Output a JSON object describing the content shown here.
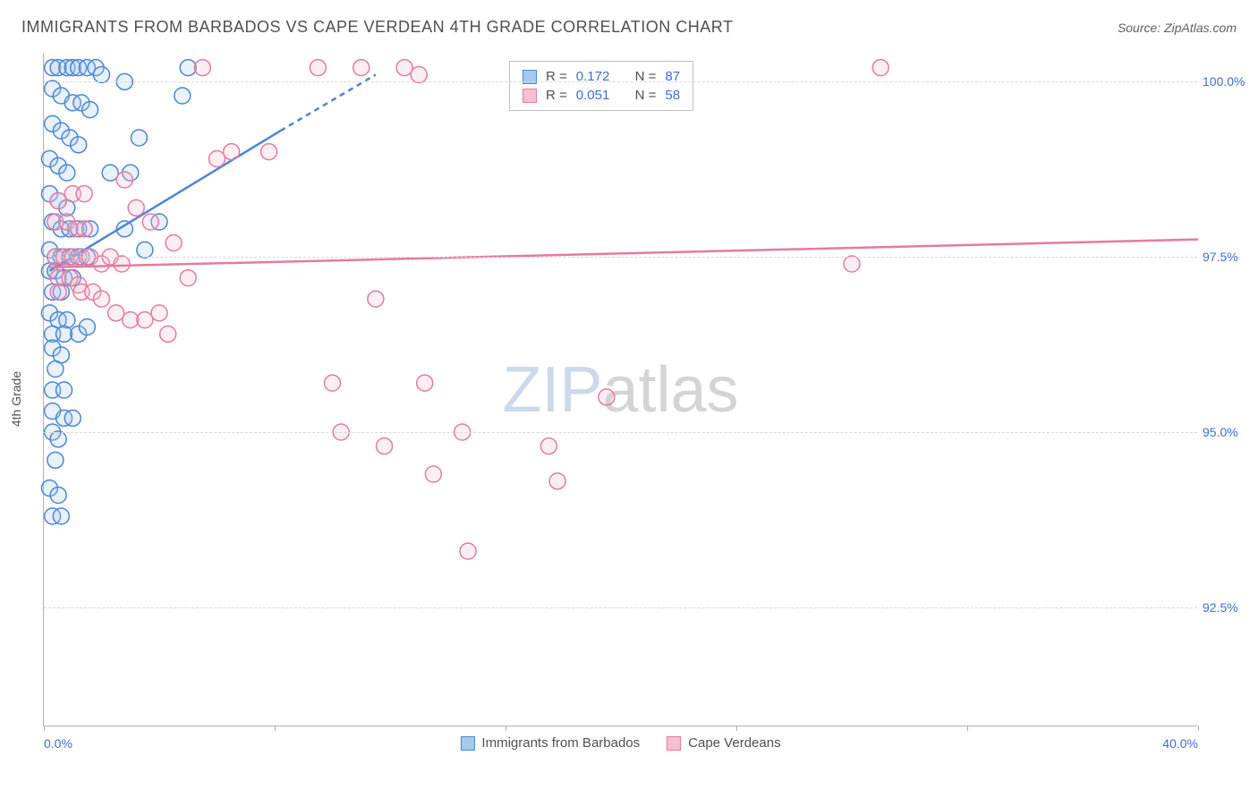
{
  "title": "IMMIGRANTS FROM BARBADOS VS CAPE VERDEAN 4TH GRADE CORRELATION CHART",
  "source": "Source: ZipAtlas.com",
  "watermark": {
    "bold": "ZIP",
    "rest": "atlas"
  },
  "y_axis_title": "4th Grade",
  "chart": {
    "type": "scatter",
    "xlim": [
      0,
      40
    ],
    "ylim": [
      90.8,
      100.4
    ],
    "background_color": "#ffffff",
    "grid_color": "#d8d8d8",
    "axis_color": "#b0b0b0",
    "tick_label_color": "#3b6fd6",
    "tick_fontsize": 14,
    "y_ticks": [
      92.5,
      95.0,
      97.5,
      100.0
    ],
    "y_tick_labels": [
      "92.5%",
      "95.0%",
      "97.5%",
      "100.0%"
    ],
    "x_ticks": [
      0,
      8,
      16,
      24,
      32,
      40
    ],
    "x_tick_labels_shown": {
      "0": "0.0%",
      "40": "40.0%"
    },
    "marker_radius": 9,
    "marker_fill_opacity": 0.25,
    "marker_stroke_width": 1.5,
    "trend_line_width": 2.5,
    "dashed_extension": true
  },
  "series": [
    {
      "key": "barbados",
      "label": "Immigrants from Barbados",
      "color_stroke": "#4a86d8",
      "color_fill": "#a8c8ec",
      "R": "0.172",
      "N": "87",
      "trend": {
        "x1": 0.2,
        "y1": 97.3,
        "x2": 8.2,
        "y2": 99.3,
        "dash_x2": 11.5,
        "dash_y2": 100.1
      },
      "points": [
        [
          0.3,
          100.2
        ],
        [
          0.5,
          100.2
        ],
        [
          0.8,
          100.2
        ],
        [
          1.0,
          100.2
        ],
        [
          1.2,
          100.2
        ],
        [
          1.5,
          100.2
        ],
        [
          1.8,
          100.2
        ],
        [
          2.0,
          100.1
        ],
        [
          0.3,
          99.9
        ],
        [
          0.6,
          99.8
        ],
        [
          1.0,
          99.7
        ],
        [
          1.3,
          99.7
        ],
        [
          1.6,
          99.6
        ],
        [
          0.3,
          99.4
        ],
        [
          0.6,
          99.3
        ],
        [
          0.9,
          99.2
        ],
        [
          1.2,
          99.1
        ],
        [
          0.2,
          98.9
        ],
        [
          0.5,
          98.8
        ],
        [
          0.8,
          98.7
        ],
        [
          0.2,
          98.4
        ],
        [
          0.5,
          98.3
        ],
        [
          0.8,
          98.2
        ],
        [
          0.3,
          98.0
        ],
        [
          0.6,
          97.9
        ],
        [
          0.9,
          97.9
        ],
        [
          1.2,
          97.9
        ],
        [
          1.6,
          97.9
        ],
        [
          0.2,
          97.6
        ],
        [
          0.4,
          97.5
        ],
        [
          0.6,
          97.5
        ],
        [
          0.9,
          97.5
        ],
        [
          1.2,
          97.5
        ],
        [
          1.5,
          97.5
        ],
        [
          0.2,
          97.3
        ],
        [
          0.4,
          97.3
        ],
        [
          0.7,
          97.2
        ],
        [
          1.0,
          97.2
        ],
        [
          0.3,
          97.0
        ],
        [
          0.6,
          97.0
        ],
        [
          0.2,
          96.7
        ],
        [
          0.5,
          96.6
        ],
        [
          0.8,
          96.6
        ],
        [
          0.3,
          96.4
        ],
        [
          0.7,
          96.4
        ],
        [
          1.2,
          96.4
        ],
        [
          1.5,
          96.5
        ],
        [
          0.3,
          96.2
        ],
        [
          0.6,
          96.1
        ],
        [
          0.4,
          95.9
        ],
        [
          0.3,
          95.6
        ],
        [
          0.7,
          95.6
        ],
        [
          0.3,
          95.3
        ],
        [
          0.7,
          95.2
        ],
        [
          1.0,
          95.2
        ],
        [
          0.3,
          95.0
        ],
        [
          0.5,
          94.9
        ],
        [
          0.4,
          94.6
        ],
        [
          0.2,
          94.2
        ],
        [
          0.5,
          94.1
        ],
        [
          0.3,
          93.8
        ],
        [
          0.6,
          93.8
        ],
        [
          2.8,
          100.0
        ],
        [
          3.0,
          98.7
        ],
        [
          3.3,
          99.2
        ],
        [
          4.8,
          99.8
        ],
        [
          5.0,
          100.2
        ],
        [
          2.3,
          98.7
        ],
        [
          2.8,
          97.9
        ],
        [
          3.5,
          97.6
        ],
        [
          4.0,
          98.0
        ]
      ]
    },
    {
      "key": "capeverdean",
      "label": "Cape Verdeans",
      "color_stroke": "#e67a9e",
      "color_fill": "#f5c0d2",
      "R": "0.051",
      "N": "58",
      "trend": {
        "x1": 0.2,
        "y1": 97.35,
        "x2": 40.0,
        "y2": 97.75,
        "dash_x2": 40.0,
        "dash_y2": 97.75
      },
      "points": [
        [
          0.4,
          97.5
        ],
        [
          0.7,
          97.5
        ],
        [
          1.0,
          97.5
        ],
        [
          1.3,
          97.5
        ],
        [
          1.6,
          97.5
        ],
        [
          0.5,
          97.2
        ],
        [
          0.9,
          97.2
        ],
        [
          1.2,
          97.1
        ],
        [
          0.4,
          98.0
        ],
        [
          0.8,
          98.0
        ],
        [
          1.1,
          97.9
        ],
        [
          1.4,
          97.9
        ],
        [
          0.5,
          98.3
        ],
        [
          1.0,
          98.4
        ],
        [
          1.4,
          98.4
        ],
        [
          0.5,
          97.0
        ],
        [
          1.3,
          97.0
        ],
        [
          1.7,
          97.0
        ],
        [
          2.0,
          97.4
        ],
        [
          2.3,
          97.5
        ],
        [
          2.7,
          97.4
        ],
        [
          2.0,
          96.9
        ],
        [
          2.5,
          96.7
        ],
        [
          3.0,
          96.6
        ],
        [
          3.5,
          96.6
        ],
        [
          4.0,
          96.7
        ],
        [
          4.3,
          96.4
        ],
        [
          5.5,
          100.2
        ],
        [
          6.0,
          98.9
        ],
        [
          6.5,
          99.0
        ],
        [
          7.8,
          99.0
        ],
        [
          9.5,
          100.2
        ],
        [
          10.0,
          95.7
        ],
        [
          10.3,
          95.0
        ],
        [
          11.0,
          100.2
        ],
        [
          11.5,
          96.9
        ],
        [
          11.8,
          94.8
        ],
        [
          12.5,
          100.2
        ],
        [
          13.0,
          100.1
        ],
        [
          13.2,
          95.7
        ],
        [
          13.5,
          94.4
        ],
        [
          14.5,
          95.0
        ],
        [
          14.7,
          93.3
        ],
        [
          17.5,
          94.8
        ],
        [
          17.8,
          94.3
        ],
        [
          19.5,
          95.5
        ],
        [
          28.0,
          97.4
        ],
        [
          29.0,
          100.2
        ],
        [
          2.8,
          98.6
        ],
        [
          3.2,
          98.2
        ],
        [
          3.7,
          98.0
        ],
        [
          4.5,
          97.7
        ],
        [
          5.0,
          97.2
        ]
      ]
    }
  ],
  "stats_box_labels": {
    "R_prefix": "R =",
    "N_prefix": "N ="
  }
}
